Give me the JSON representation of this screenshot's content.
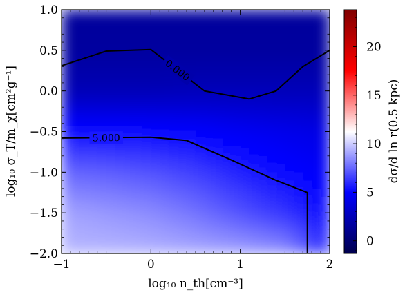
{
  "chart_data": {
    "type": "heatmap",
    "title": "",
    "xlabel": "log₁₀ n_th[cm⁻³]",
    "ylabel": "log₁₀ σ_T/m_χ[cm²g⁻¹]",
    "colorbar_label": "dσ/d ln r(0.5 kpc)",
    "xlim": [
      -1,
      2
    ],
    "ylim": [
      -2,
      1
    ],
    "x_ticks": [
      -1,
      0,
      1,
      2
    ],
    "x_tick_labels": [
      "−1",
      "0",
      "1",
      "2"
    ],
    "y_ticks": [
      -2.0,
      -1.5,
      -1.0,
      -0.5,
      0.0,
      0.5,
      1.0
    ],
    "y_tick_labels": [
      "−2.0",
      "−1.5",
      "−1.0",
      "−0.5",
      "0.0",
      "0.5",
      "1.0"
    ],
    "colorbar_range": [
      -1.3,
      23.8
    ],
    "colorbar_ticks": [
      0,
      5,
      10,
      15,
      20
    ],
    "colorbar_tick_labels": [
      "0",
      "5",
      "10",
      "15",
      "20"
    ],
    "colormap": "seismic",
    "colormap_stops": [
      "#00004c",
      "#0000ff",
      "#ffffff",
      "#ff0000",
      "#800000"
    ],
    "grid_x": [
      -1.0,
      -0.5,
      0.0,
      0.5,
      1.0,
      1.5,
      2.0
    ],
    "grid_y": [
      1.0,
      0.5,
      0.0,
      -0.5,
      -1.0,
      -1.5,
      -2.0
    ],
    "grid_values": [
      [
        1.5,
        1.5,
        1.5,
        1.5,
        1.5,
        1.5,
        1.5
      ],
      [
        1.6,
        1.6,
        1.6,
        1.6,
        1.6,
        1.6,
        1.6
      ],
      [
        2.4,
        2.4,
        2.4,
        2.5,
        2.5,
        2.5,
        2.5
      ],
      [
        5.4,
        5.3,
        5.2,
        5.0,
        4.6,
        4.3,
        4.0
      ],
      [
        7.5,
        7.3,
        7.0,
        6.5,
        5.8,
        5.2,
        4.7
      ],
      [
        9.0,
        8.7,
        8.4,
        7.8,
        7.0,
        6.2,
        5.2
      ],
      [
        9.5,
        9.5,
        9.4,
        9.2,
        9.0,
        8.6,
        6.0
      ]
    ],
    "contours": [
      {
        "level_label": "0.000",
        "points": [
          [
            -1.0,
            0.31
          ],
          [
            -0.5,
            0.49
          ],
          [
            0.0,
            0.51
          ],
          [
            0.6,
            0.0
          ],
          [
            1.1,
            -0.1
          ],
          [
            1.4,
            0.0
          ],
          [
            1.7,
            0.3
          ],
          [
            2.0,
            0.5
          ]
        ]
      },
      {
        "level_label": "5.000",
        "points": [
          [
            -1.0,
            -0.58
          ],
          [
            0.0,
            -0.57
          ],
          [
            0.4,
            -0.61
          ],
          [
            0.9,
            -0.85
          ],
          [
            1.4,
            -1.1
          ],
          [
            1.75,
            -1.25
          ],
          [
            1.75,
            -2.0
          ]
        ]
      }
    ]
  }
}
